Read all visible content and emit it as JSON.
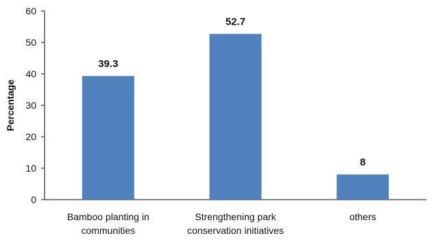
{
  "chart_data": {
    "type": "bar",
    "categories": [
      [
        "Bamboo planting in",
        "communities"
      ],
      [
        "Strengthening park",
        "conservation initiatives"
      ],
      [
        "others"
      ]
    ],
    "values": [
      39.3,
      52.7,
      8
    ],
    "data_labels": [
      "39.3",
      "52.7",
      "8"
    ],
    "ylabel": "Percentage",
    "ylim": [
      0,
      60
    ],
    "yticks": [
      0,
      10,
      20,
      30,
      40,
      50,
      60
    ],
    "grid": false,
    "legend": "none",
    "colors": {
      "bar": "#4f81bd"
    }
  }
}
